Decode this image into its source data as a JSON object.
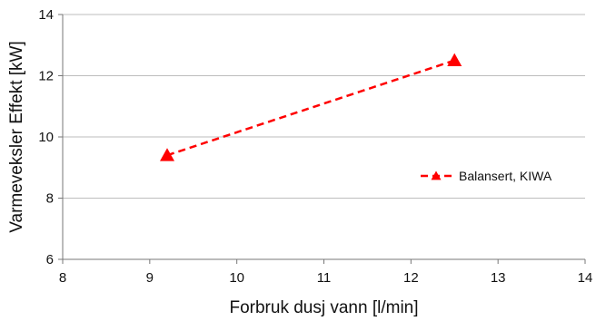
{
  "chart_data": {
    "type": "scatter",
    "xlabel": "Forbruk dusj vann  [l/min]",
    "ylabel": "Varmeveksler Effekt [kW]",
    "xlim": [
      8,
      14
    ],
    "ylim": [
      6,
      14
    ],
    "xticks": [
      "8",
      "9",
      "10",
      "11",
      "12",
      "13",
      "14"
    ],
    "yticks": [
      "6",
      "8",
      "10",
      "12",
      "14"
    ],
    "grid": "horizontal",
    "legend_position": "right",
    "series": [
      {
        "name": "Balansert, KIWA",
        "color": "#ff0000",
        "marker": "triangle",
        "line_style": "dashed",
        "points": [
          {
            "x": 9.2,
            "y": 9.4
          },
          {
            "x": 12.5,
            "y": 12.5
          }
        ]
      }
    ]
  }
}
